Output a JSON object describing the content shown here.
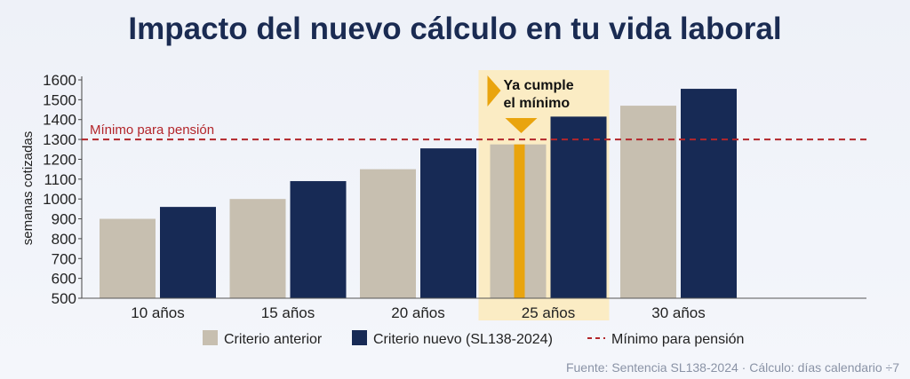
{
  "chart_data": {
    "type": "bar",
    "title": "Impacto del nuevo cálculo en tu vida laboral",
    "ylabel": "semanas cotizadas",
    "xlabel": "",
    "categories": [
      "10 años",
      "15 años",
      "20 años",
      "25 años",
      "30 años"
    ],
    "series": [
      {
        "name": "Criterio anterior",
        "values": [
          900,
          1000,
          1150,
          1275,
          1470
        ],
        "color": "#c7bfb0"
      },
      {
        "name": "Criterio nuevo (SL138-2024)",
        "values": [
          960,
          1090,
          1255,
          1415,
          1555
        ],
        "color": "#172a55"
      }
    ],
    "ylim": [
      500,
      1600
    ],
    "yticks": [
      500,
      600,
      700,
      800,
      900,
      1000,
      1100,
      1200,
      1300,
      1400,
      1500,
      1600
    ],
    "threshold": {
      "label": "Mínimo para pensión",
      "value": 1300,
      "color": "#b3262b"
    },
    "highlight": {
      "category": "25 años",
      "annotation": [
        "Ya cumple",
        "el mínimo"
      ],
      "band_color": "#fbecc4",
      "accent_color": "#e9a40e"
    },
    "legend": {
      "placement": "bottom",
      "items": [
        "Criterio anterior",
        "Criterio nuevo (SL138-2024)",
        "Mínimo para pensión"
      ]
    },
    "source": "Fuente: Sentencia SL138-2024 · Cálculo: días calendario ÷7",
    "grid": false
  }
}
